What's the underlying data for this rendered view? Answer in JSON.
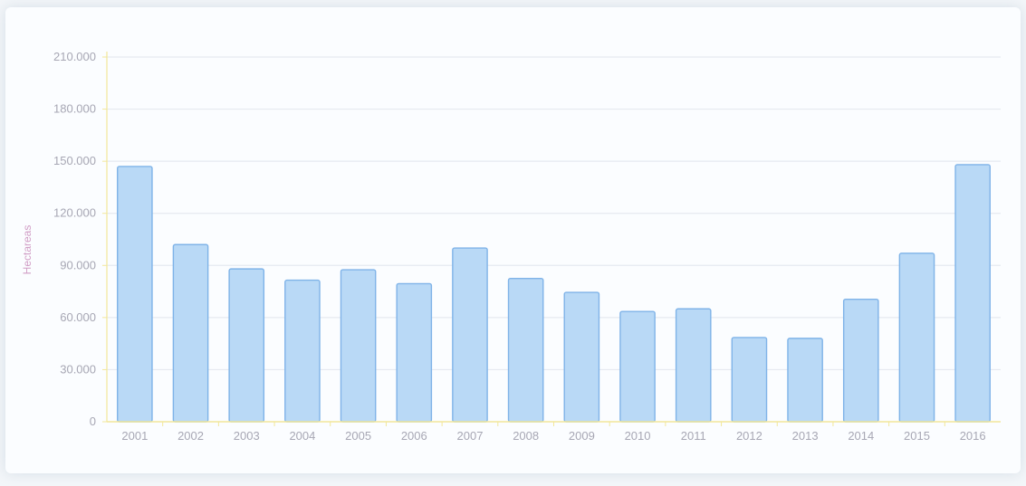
{
  "chart_data": {
    "type": "bar",
    "ylabel": "Hectareas",
    "categories": [
      "2001",
      "2002",
      "2003",
      "2004",
      "2005",
      "2006",
      "2007",
      "2008",
      "2009",
      "2010",
      "2011",
      "2012",
      "2013",
      "2014",
      "2015",
      "2016"
    ],
    "values": [
      147000,
      102000,
      88000,
      81500,
      87500,
      79500,
      100000,
      82500,
      74500,
      63500,
      65000,
      48500,
      48000,
      70500,
      97000,
      148000
    ],
    "ytick_labels": [
      "0",
      "30.000",
      "60.000",
      "90.000",
      "120.000",
      "150.000",
      "180.000",
      "210.000"
    ],
    "ylim": [
      0,
      210000
    ],
    "grid": true,
    "legend": "none",
    "colors": {
      "bar_fill": "#b9d9f6",
      "bar_stroke": "#7fb3e8",
      "grid": "#e6eaf0",
      "axis": "#f2e79a",
      "tick_text": "#a7a7b4",
      "ylabel_text": "#d19ec6"
    }
  }
}
